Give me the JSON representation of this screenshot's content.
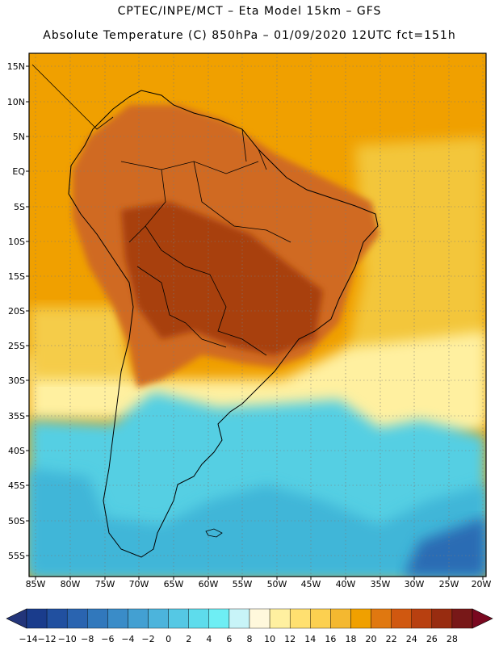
{
  "titles": {
    "line1": "CPTEC/INPE/MCT –  Eta Model 15km – GFS",
    "line2": "Absolute Temperature (C) 850hPa – 01/09/2020 12UTC fct=151h"
  },
  "map": {
    "lat_labels": [
      "15N",
      "10N",
      "5N",
      "EQ",
      "5S",
      "10S",
      "15S",
      "20S",
      "25S",
      "30S",
      "35S",
      "40S",
      "45S",
      "50S",
      "55S"
    ],
    "lon_labels": [
      "85W",
      "80W",
      "75W",
      "70W",
      "65W",
      "60W",
      "55W",
      "50W",
      "45W",
      "40W",
      "35W",
      "30W",
      "25W",
      "20W"
    ],
    "regions": [
      {
        "id": "warm-ocean-north",
        "color": "#f0a000"
      },
      {
        "id": "hot-interior",
        "color": "#c85a18"
      },
      {
        "id": "hottest-core",
        "color": "#a83c10"
      },
      {
        "id": "mid-warm-band",
        "color": "#f3c63a"
      },
      {
        "id": "cool-band",
        "color": "#fff3a0"
      },
      {
        "id": "cold-south",
        "color": "#55cfe3"
      },
      {
        "id": "colder-south",
        "color": "#3fb6d8"
      }
    ]
  },
  "colorbar": {
    "labels": [
      "-14",
      "-12",
      "-10",
      "-8",
      "-6",
      "-4",
      "-2",
      "0",
      "2",
      "4",
      "6",
      "8",
      "10",
      "12",
      "14",
      "16",
      "18",
      "20",
      "22",
      "24",
      "26",
      "28"
    ],
    "colors": [
      "#1a3c8c",
      "#2150a0",
      "#2a64b0",
      "#3178bc",
      "#3a8cc8",
      "#43a0d2",
      "#4cb4dc",
      "#55c8e4",
      "#5edcec",
      "#6eeef4",
      "#c8f4f8",
      "#fff8dc",
      "#fff0a0",
      "#ffe070",
      "#fcd050",
      "#f4b830",
      "#f0a000",
      "#e07810",
      "#d05810",
      "#b84010",
      "#982c10",
      "#781818"
    ],
    "left_end_color": "#23357a",
    "right_end_color": "#7a0820"
  }
}
